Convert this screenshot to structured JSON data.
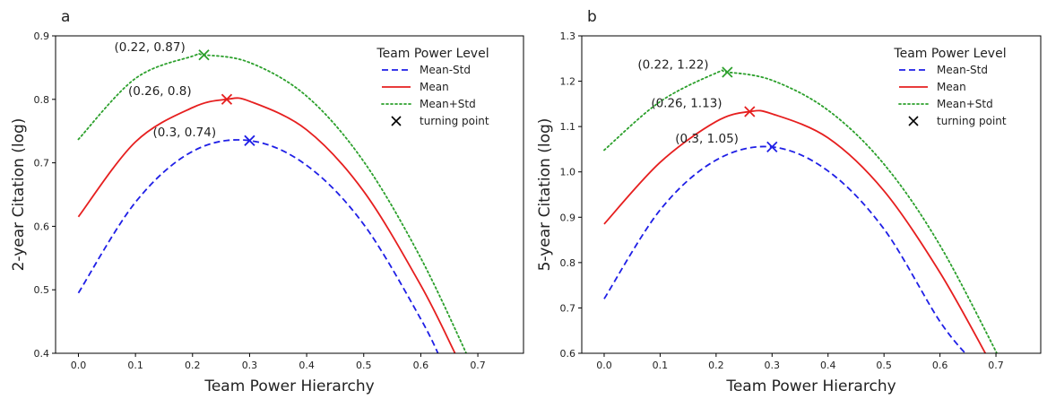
{
  "chart_data": [
    {
      "type": "line",
      "panel_label": "a",
      "xlabel": "Team Power Hierarchy",
      "ylabel": "2-year Citation (log)",
      "xlim": [
        -0.04,
        0.78
      ],
      "ylim": [
        0.4,
        0.9
      ],
      "xticks": [
        0.0,
        0.1,
        0.2,
        0.3,
        0.4,
        0.5,
        0.6,
        0.7
      ],
      "xtick_labels": [
        "0.0",
        "0.1",
        "0.2",
        "0.3",
        "0.4",
        "0.5",
        "0.6",
        "0.7"
      ],
      "yticks": [
        0.4,
        0.5,
        0.6,
        0.7,
        0.8,
        0.9
      ],
      "ytick_labels": [
        "0.4",
        "0.5",
        "0.6",
        "0.7",
        "0.8",
        "0.9"
      ],
      "grid": false,
      "legend": {
        "title": "Team Power Level",
        "placement": "top-right",
        "entries": [
          "Mean-Std",
          "Mean",
          "Mean+Std",
          "turning point"
        ]
      },
      "series": [
        {
          "name": "Mean-Std",
          "color": "#1f1fe6",
          "style": "dashed",
          "x": [
            0.0,
            0.1,
            0.2,
            0.3,
            0.4,
            0.5,
            0.6,
            0.64
          ],
          "y": [
            0.495,
            0.638,
            0.718,
            0.735,
            0.696,
            0.603,
            0.454,
            0.38
          ],
          "turning_point": [
            0.3,
            0.735
          ],
          "turning_label": "(0.3, 0.74)"
        },
        {
          "name": "Mean",
          "color": "#e61f1f",
          "style": "solid",
          "x": [
            0.0,
            0.1,
            0.2,
            0.26,
            0.3,
            0.4,
            0.5,
            0.6,
            0.66
          ],
          "y": [
            0.615,
            0.733,
            0.787,
            0.8,
            0.797,
            0.752,
            0.655,
            0.507,
            0.4
          ],
          "turning_point": [
            0.26,
            0.8
          ],
          "turning_label": "(0.26, 0.8)"
        },
        {
          "name": "Mean+Std",
          "color": "#2ca02c",
          "style": "dotted",
          "x": [
            0.0,
            0.1,
            0.2,
            0.22,
            0.3,
            0.4,
            0.5,
            0.6,
            0.69
          ],
          "y": [
            0.737,
            0.833,
            0.868,
            0.87,
            0.858,
            0.805,
            0.702,
            0.55,
            0.38
          ],
          "turning_point": [
            0.22,
            0.87
          ],
          "turning_label": "(0.22, 0.87)"
        }
      ]
    },
    {
      "type": "line",
      "panel_label": "b",
      "xlabel": "Team Power Hierarchy",
      "ylabel": "5-year Citation (log)",
      "xlim": [
        -0.04,
        0.78
      ],
      "ylim": [
        0.6,
        1.3
      ],
      "xticks": [
        0.0,
        0.1,
        0.2,
        0.3,
        0.4,
        0.5,
        0.6,
        0.7
      ],
      "xtick_labels": [
        "0.0",
        "0.1",
        "0.2",
        "0.3",
        "0.4",
        "0.5",
        "0.6",
        "0.7"
      ],
      "yticks": [
        0.6,
        0.7,
        0.8,
        0.9,
        1.0,
        1.1,
        1.2,
        1.3
      ],
      "ytick_labels": [
        "0.6",
        "0.7",
        "0.8",
        "0.9",
        "1.0",
        "1.1",
        "1.2",
        "1.3"
      ],
      "grid": false,
      "legend": {
        "title": "Team Power Level",
        "placement": "top-right",
        "entries": [
          "Mean-Std",
          "Mean",
          "Mean+Std",
          "turning point"
        ]
      },
      "series": [
        {
          "name": "Mean-Std",
          "color": "#1f1fe6",
          "style": "dashed",
          "x": [
            0.0,
            0.1,
            0.2,
            0.3,
            0.4,
            0.5,
            0.6,
            0.66
          ],
          "y": [
            0.72,
            0.916,
            1.026,
            1.055,
            1.002,
            0.874,
            0.67,
            0.58
          ],
          "turning_point": [
            0.3,
            1.055
          ],
          "turning_label": "(0.3, 1.05)"
        },
        {
          "name": "Mean",
          "color": "#e61f1f",
          "style": "solid",
          "x": [
            0.0,
            0.1,
            0.2,
            0.26,
            0.3,
            0.4,
            0.5,
            0.6,
            0.69
          ],
          "y": [
            0.885,
            1.021,
            1.111,
            1.133,
            1.128,
            1.075,
            0.958,
            0.778,
            0.58
          ],
          "turning_point": [
            0.26,
            1.133
          ],
          "turning_label": "(0.26, 1.13)"
        },
        {
          "name": "Mean+Std",
          "color": "#2ca02c",
          "style": "dotted",
          "x": [
            0.0,
            0.1,
            0.2,
            0.22,
            0.3,
            0.4,
            0.5,
            0.6,
            0.71
          ],
          "y": [
            1.048,
            1.155,
            1.218,
            1.22,
            1.202,
            1.136,
            1.017,
            0.838,
            0.58
          ],
          "turning_point": [
            0.22,
            1.22
          ],
          "turning_label": "(0.22, 1.22)"
        }
      ]
    }
  ]
}
